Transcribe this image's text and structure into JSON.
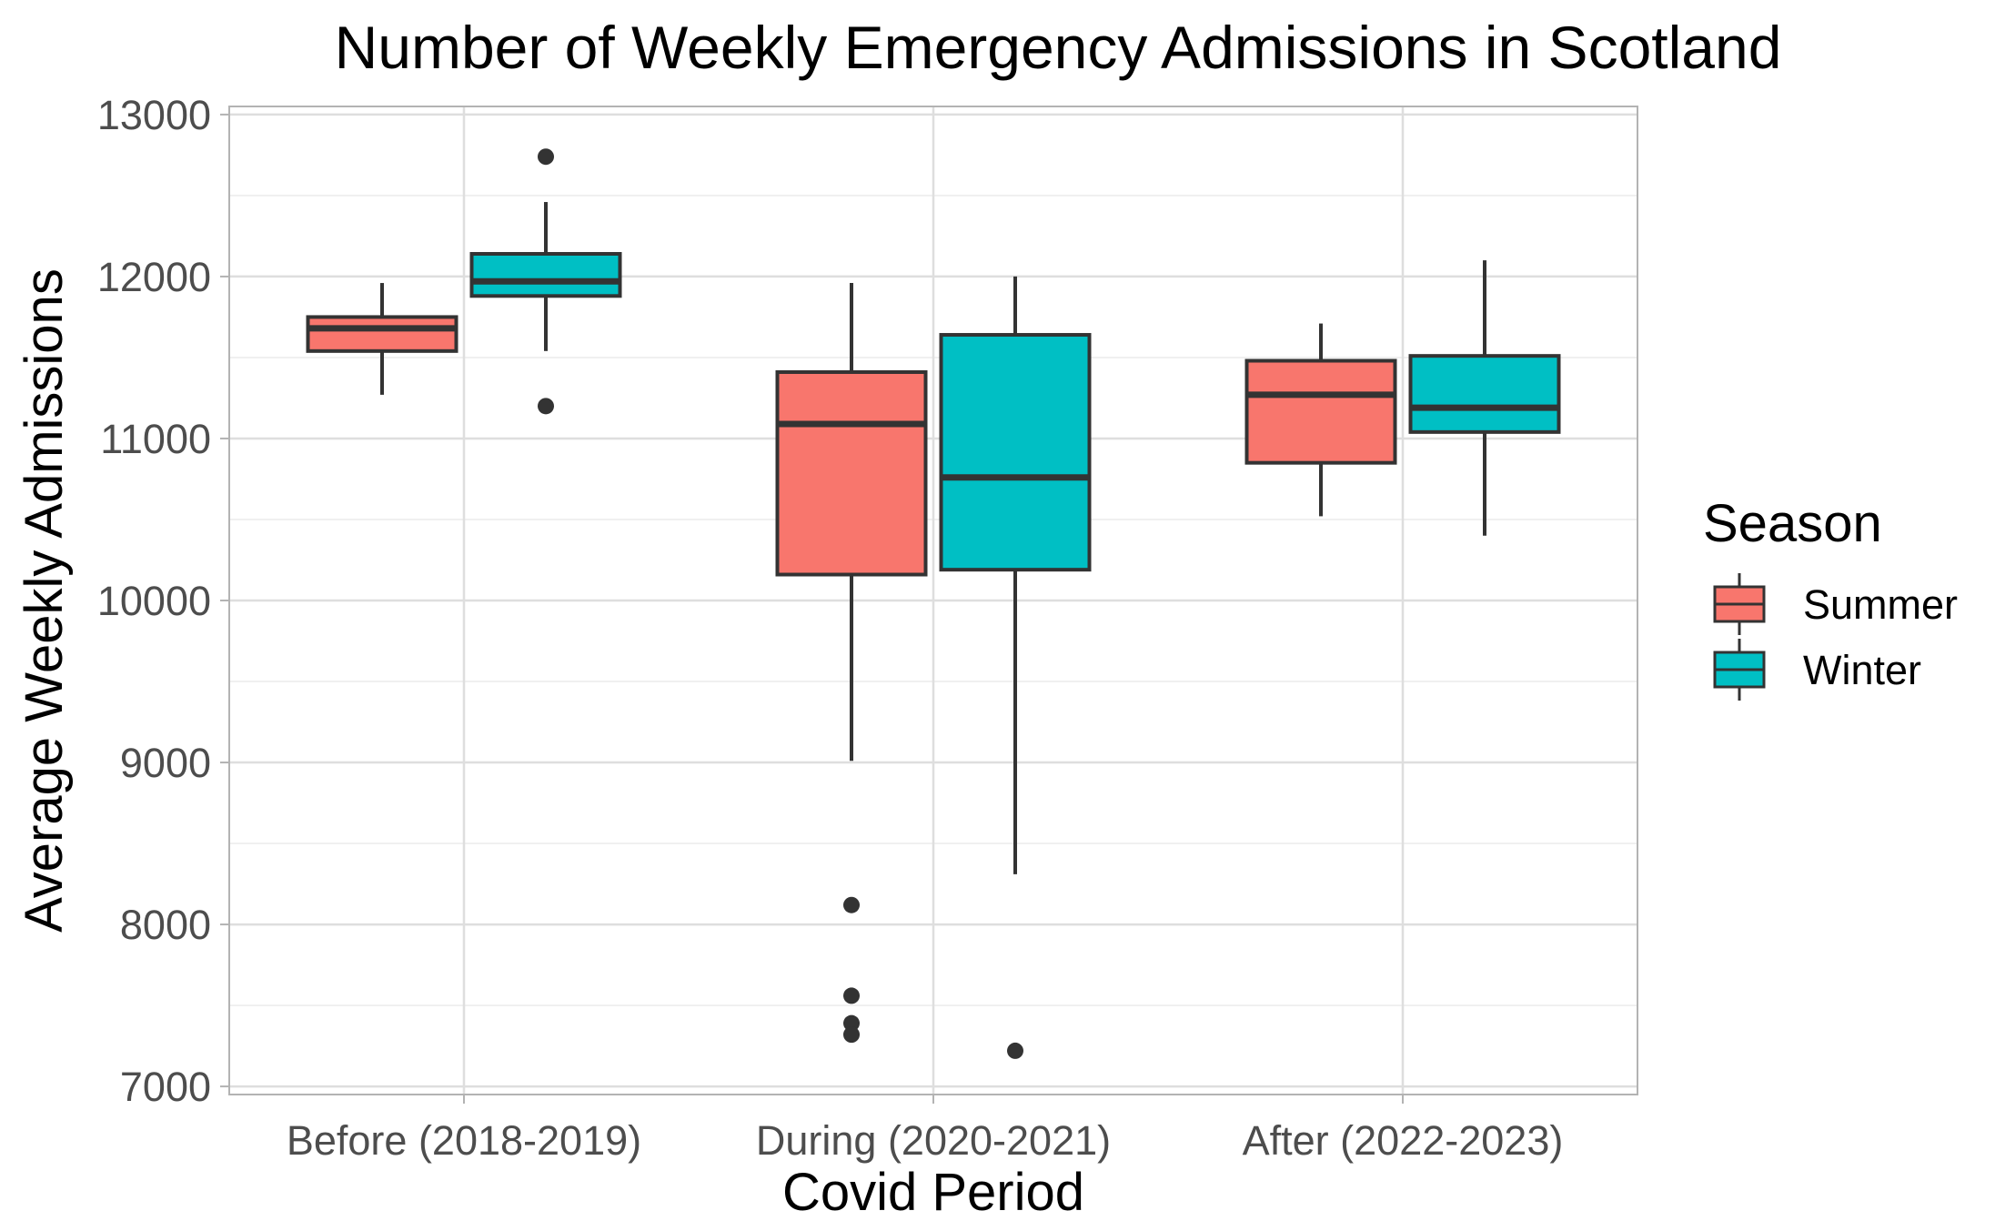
{
  "chart_data": {
    "type": "box",
    "title": "Number of Weekly Emergency Admissions in Scotland",
    "xlabel": "Covid Period",
    "ylabel": "Average Weekly Admissions",
    "categories": [
      "Before (2018-2019)",
      "During (2020-2021)",
      "After (2022-2023)"
    ],
    "ylim": [
      6950,
      13050
    ],
    "yticks": [
      7000,
      8000,
      9000,
      10000,
      11000,
      12000,
      13000
    ],
    "grid": true,
    "legend": {
      "title": "Season",
      "position": "right",
      "items": [
        {
          "label": "Summer",
          "color": "#F8766D"
        },
        {
          "label": "Winter",
          "color": "#00BFC4"
        }
      ]
    },
    "series": [
      {
        "name": "Summer",
        "color": "#F8766D",
        "boxes": [
          {
            "category": "Before (2018-2019)",
            "whisker_low": 11270,
            "q1": 11540,
            "median": 11680,
            "q3": 11750,
            "whisker_high": 11960,
            "outliers": []
          },
          {
            "category": "During (2020-2021)",
            "whisker_low": 9010,
            "q1": 10160,
            "median": 11090,
            "q3": 11410,
            "whisker_high": 11960,
            "outliers": [
              8120,
              7560,
              7390,
              7320
            ]
          },
          {
            "category": "After (2022-2023)",
            "whisker_low": 10520,
            "q1": 10850,
            "median": 11270,
            "q3": 11480,
            "whisker_high": 11710,
            "outliers": []
          }
        ]
      },
      {
        "name": "Winter",
        "color": "#00BFC4",
        "boxes": [
          {
            "category": "Before (2018-2019)",
            "whisker_low": 11540,
            "q1": 11880,
            "median": 11970,
            "q3": 12140,
            "whisker_high": 12460,
            "outliers": [
              12740,
              11200
            ]
          },
          {
            "category": "During (2020-2021)",
            "whisker_low": 8310,
            "q1": 10190,
            "median": 10760,
            "q3": 11640,
            "whisker_high": 12000,
            "outliers": [
              7220
            ]
          },
          {
            "category": "After (2022-2023)",
            "whisker_low": 10400,
            "q1": 11040,
            "median": 11190,
            "q3": 11510,
            "whisker_high": 12100,
            "outliers": []
          }
        ]
      }
    ]
  }
}
